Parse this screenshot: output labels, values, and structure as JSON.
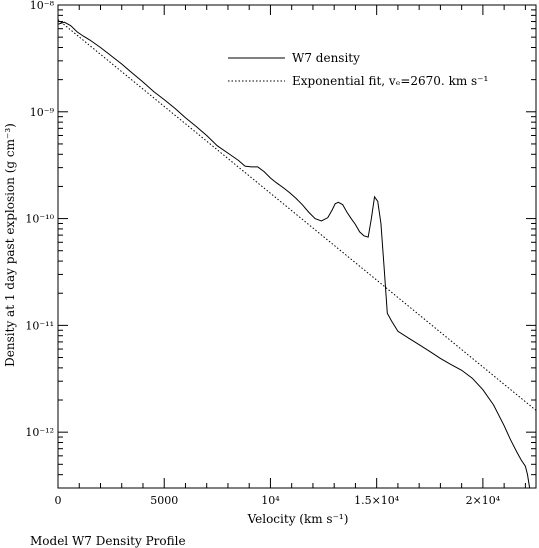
{
  "chart_data": {
    "type": "line",
    "title": "",
    "caption": "Model W7 Density Profile",
    "xlabel": "Velocity (km s⁻¹)",
    "ylabel": "Density at 1 day past explosion (g cm⁻³)",
    "xlim": [
      0,
      22500
    ],
    "ylim": [
      3e-13,
      1e-08
    ],
    "yscale": "log",
    "legend_position": "top-right",
    "x_ticks": [
      {
        "value": 0,
        "label": "0"
      },
      {
        "value": 5000,
        "label": "5000"
      },
      {
        "value": 10000,
        "label": "10⁴"
      },
      {
        "value": 15000,
        "label": "1.5×10⁴"
      },
      {
        "value": 20000,
        "label": "2×10⁴"
      }
    ],
    "y_ticks": [
      {
        "value": 1e-08,
        "label": "10⁻⁸"
      },
      {
        "value": 1e-09,
        "label": "10⁻⁹"
      },
      {
        "value": 1e-10,
        "label": "10⁻¹⁰"
      },
      {
        "value": 1e-11,
        "label": "10⁻¹¹"
      },
      {
        "value": 1e-12,
        "label": "10⁻¹²"
      }
    ],
    "series": [
      {
        "name": "W7 density",
        "style": "solid",
        "color": "#000000",
        "x": [
          0,
          300,
          600,
          900,
          1200,
          1500,
          2000,
          2500,
          3000,
          3500,
          4000,
          4500,
          5000,
          5500,
          6000,
          6500,
          7000,
          7500,
          8000,
          8500,
          8800,
          9100,
          9400,
          9700,
          10000,
          10300,
          10600,
          10900,
          11200,
          11500,
          11800,
          12100,
          12400,
          12700,
          12900,
          13050,
          13200,
          13400,
          13600,
          13800,
          14000,
          14200,
          14400,
          14600,
          14750,
          14900,
          15050,
          15200,
          15350,
          15500,
          15700,
          16000,
          16500,
          17000,
          17500,
          18000,
          18500,
          19000,
          19500,
          20000,
          20500,
          21000,
          21300,
          21600,
          21800,
          22000,
          22100,
          22200
        ],
        "y": [
          6.6e-09,
          6.9e-09,
          6.4e-09,
          5.6e-09,
          5.1e-09,
          4.7e-09,
          4e-09,
          3.35e-09,
          2.8e-09,
          2.3e-09,
          1.9e-09,
          1.55e-09,
          1.3e-09,
          1.08e-09,
          8.8e-10,
          7.3e-10,
          6e-10,
          4.8e-10,
          4.1e-10,
          3.5e-10,
          3.1e-10,
          3.05e-10,
          3.05e-10,
          2.75e-10,
          2.4e-10,
          2.15e-10,
          1.95e-10,
          1.75e-10,
          1.55e-10,
          1.35e-10,
          1.15e-10,
          1e-10,
          9.5e-11,
          1.02e-10,
          1.2e-10,
          1.38e-10,
          1.42e-10,
          1.35e-10,
          1.15e-10,
          1e-10,
          8.8e-11,
          7.5e-11,
          6.9e-11,
          6.7e-11,
          1e-10,
          1.6e-10,
          1.45e-10,
          9e-11,
          3.5e-11,
          1.3e-11,
          1.1e-11,
          8.8e-12,
          7.6e-12,
          6.6e-12,
          5.7e-12,
          4.9e-12,
          4.3e-12,
          3.8e-12,
          3.2e-12,
          2.5e-12,
          1.8e-12,
          1.15e-12,
          8.5e-13,
          6.5e-13,
          5.5e-13,
          4.8e-13,
          4e-13,
          3e-13
        ]
      },
      {
        "name": "Exponential fit, vₑ=2670. km s⁻¹",
        "style": "dotted",
        "color": "#000000",
        "v_e": 2670,
        "x": [
          0,
          22500
        ],
        "y": [
          7.3e-09,
          1.6e-12
        ]
      }
    ]
  }
}
